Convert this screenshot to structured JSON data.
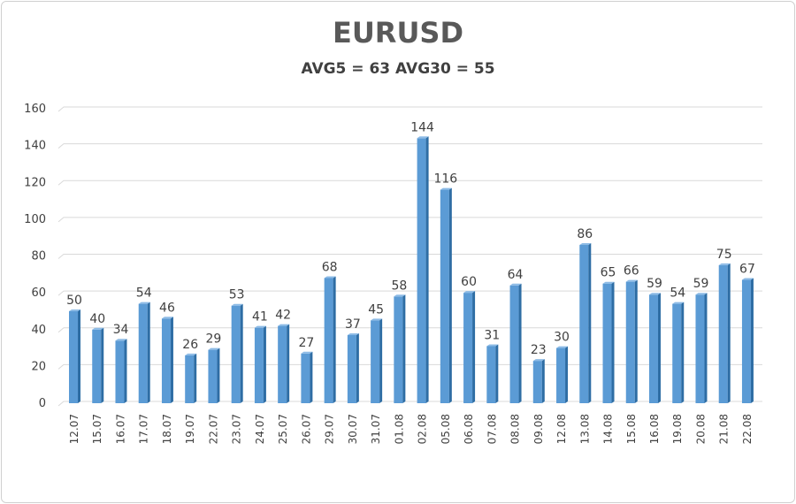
{
  "chart_data": {
    "type": "bar",
    "title": "EURUSD",
    "subtitle": "AVG5 = 63 AVG30 = 55",
    "categories": [
      "12.07",
      "15.07",
      "16.07",
      "17.07",
      "18.07",
      "19.07",
      "22.07",
      "23.07",
      "24.07",
      "25.07",
      "26.07",
      "29.07",
      "30.07",
      "31.07",
      "01.08",
      "02.08",
      "05.08",
      "06.08",
      "07.08",
      "08.08",
      "09.08",
      "12.08",
      "13.08",
      "14.08",
      "15.08",
      "16.08",
      "19.08",
      "20.08",
      "21.08",
      "22.08"
    ],
    "values": [
      50,
      40,
      34,
      54,
      46,
      26,
      29,
      53,
      41,
      42,
      27,
      68,
      37,
      45,
      58,
      144,
      116,
      60,
      31,
      64,
      23,
      30,
      86,
      65,
      66,
      59,
      54,
      59,
      75,
      67
    ],
    "ylim": [
      0,
      160
    ],
    "yticks": [
      0,
      20,
      40,
      60,
      80,
      100,
      120,
      140,
      160
    ],
    "grid": true,
    "legend": "none",
    "colors": {
      "bar": "#5b9bd5",
      "bar_side": "#2e6da4",
      "bar_top": "#8dbbe6",
      "grid": "#d9d9d9",
      "text": "#404040"
    }
  }
}
